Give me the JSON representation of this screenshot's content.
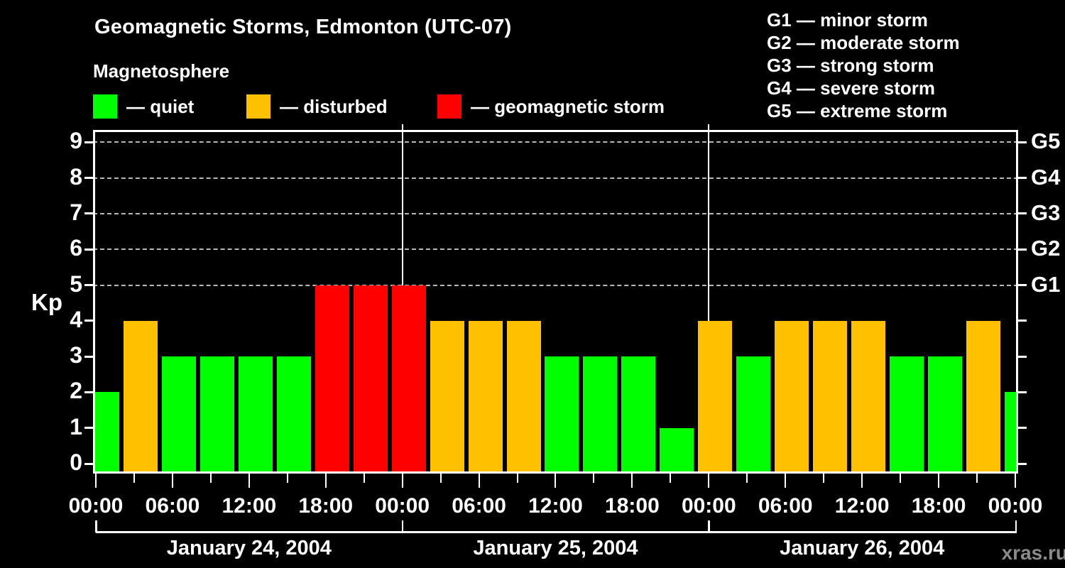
{
  "title": "Geomagnetic Storms, Edmonton (UTC-07)",
  "magnetosphere_legend": {
    "title": "Magnetosphere",
    "items": [
      {
        "id": "quiet",
        "label": "— quiet",
        "color": "#00ff00"
      },
      {
        "id": "disturbed",
        "label": "— disturbed",
        "color": "#ffc000"
      },
      {
        "id": "storm",
        "label": "— geomagnetic storm",
        "color": "#ff0000"
      }
    ]
  },
  "storm_scale_legend": {
    "items": [
      "G1 — minor storm",
      "G2 — moderate storm",
      "G3 — strong storm",
      "G4 — severe storm",
      "G5 — extreme storm"
    ]
  },
  "y_axis": {
    "label": "Kp",
    "ticks": [
      0,
      1,
      2,
      3,
      4,
      5,
      6,
      7,
      8,
      9
    ]
  },
  "right_axis": {
    "labels": [
      {
        "text": "G1",
        "kp": 5
      },
      {
        "text": "G2",
        "kp": 6
      },
      {
        "text": "G3",
        "kp": 7
      },
      {
        "text": "G4",
        "kp": 8
      },
      {
        "text": "G5",
        "kp": 9
      }
    ]
  },
  "x_axis": {
    "time_labels": [
      "00:00",
      "06:00",
      "12:00",
      "18:00",
      "00:00",
      "06:00",
      "12:00",
      "18:00",
      "00:00",
      "06:00",
      "12:00",
      "18:00",
      "00:00"
    ],
    "time_label_step_hours": 6,
    "minor_tick_step_hours": 3,
    "day_labels": [
      "January 24, 2004",
      "January 25, 2004",
      "January 26, 2004"
    ]
  },
  "watermark": "xras.ru",
  "colors": {
    "quiet": "#00ff00",
    "disturbed": "#ffc000",
    "storm": "#ff0000",
    "background": "#000000",
    "axis": "#ffffff",
    "grid": "#b8b8b8",
    "watermark": "#8a8a8a"
  },
  "chart_data": {
    "type": "bar",
    "title": "Geomagnetic Storms, Edmonton (UTC-07)",
    "ylabel": "Kp",
    "ylim": [
      0,
      9
    ],
    "x_hours": [
      0,
      3,
      6,
      9,
      12,
      15,
      18,
      21,
      24,
      27,
      30,
      33,
      36,
      39,
      42,
      45,
      48,
      51,
      54,
      57,
      60,
      63,
      66,
      69,
      72
    ],
    "values": [
      2,
      4,
      3,
      3,
      3,
      3,
      5,
      5,
      5,
      4,
      4,
      4,
      3,
      3,
      3,
      1,
      4,
      3,
      4,
      4,
      4,
      3,
      3,
      4,
      2
    ],
    "statuses": [
      "quiet",
      "disturbed",
      "quiet",
      "quiet",
      "quiet",
      "quiet",
      "storm",
      "storm",
      "storm",
      "disturbed",
      "disturbed",
      "disturbed",
      "quiet",
      "quiet",
      "quiet",
      "quiet",
      "disturbed",
      "quiet",
      "disturbed",
      "disturbed",
      "disturbed",
      "quiet",
      "quiet",
      "disturbed",
      "quiet"
    ],
    "status_rule": {
      "quiet": "Kp <= 3",
      "disturbed": "Kp = 4",
      "storm": "Kp >= 5"
    },
    "g_scale_gridlines_kp": [
      5,
      6,
      7,
      8,
      9
    ],
    "day_boundaries_hours": [
      24,
      48
    ],
    "grid": "dashed horizontal lines at Kp 5..9 only",
    "legend_position": "top-left and top-right"
  }
}
